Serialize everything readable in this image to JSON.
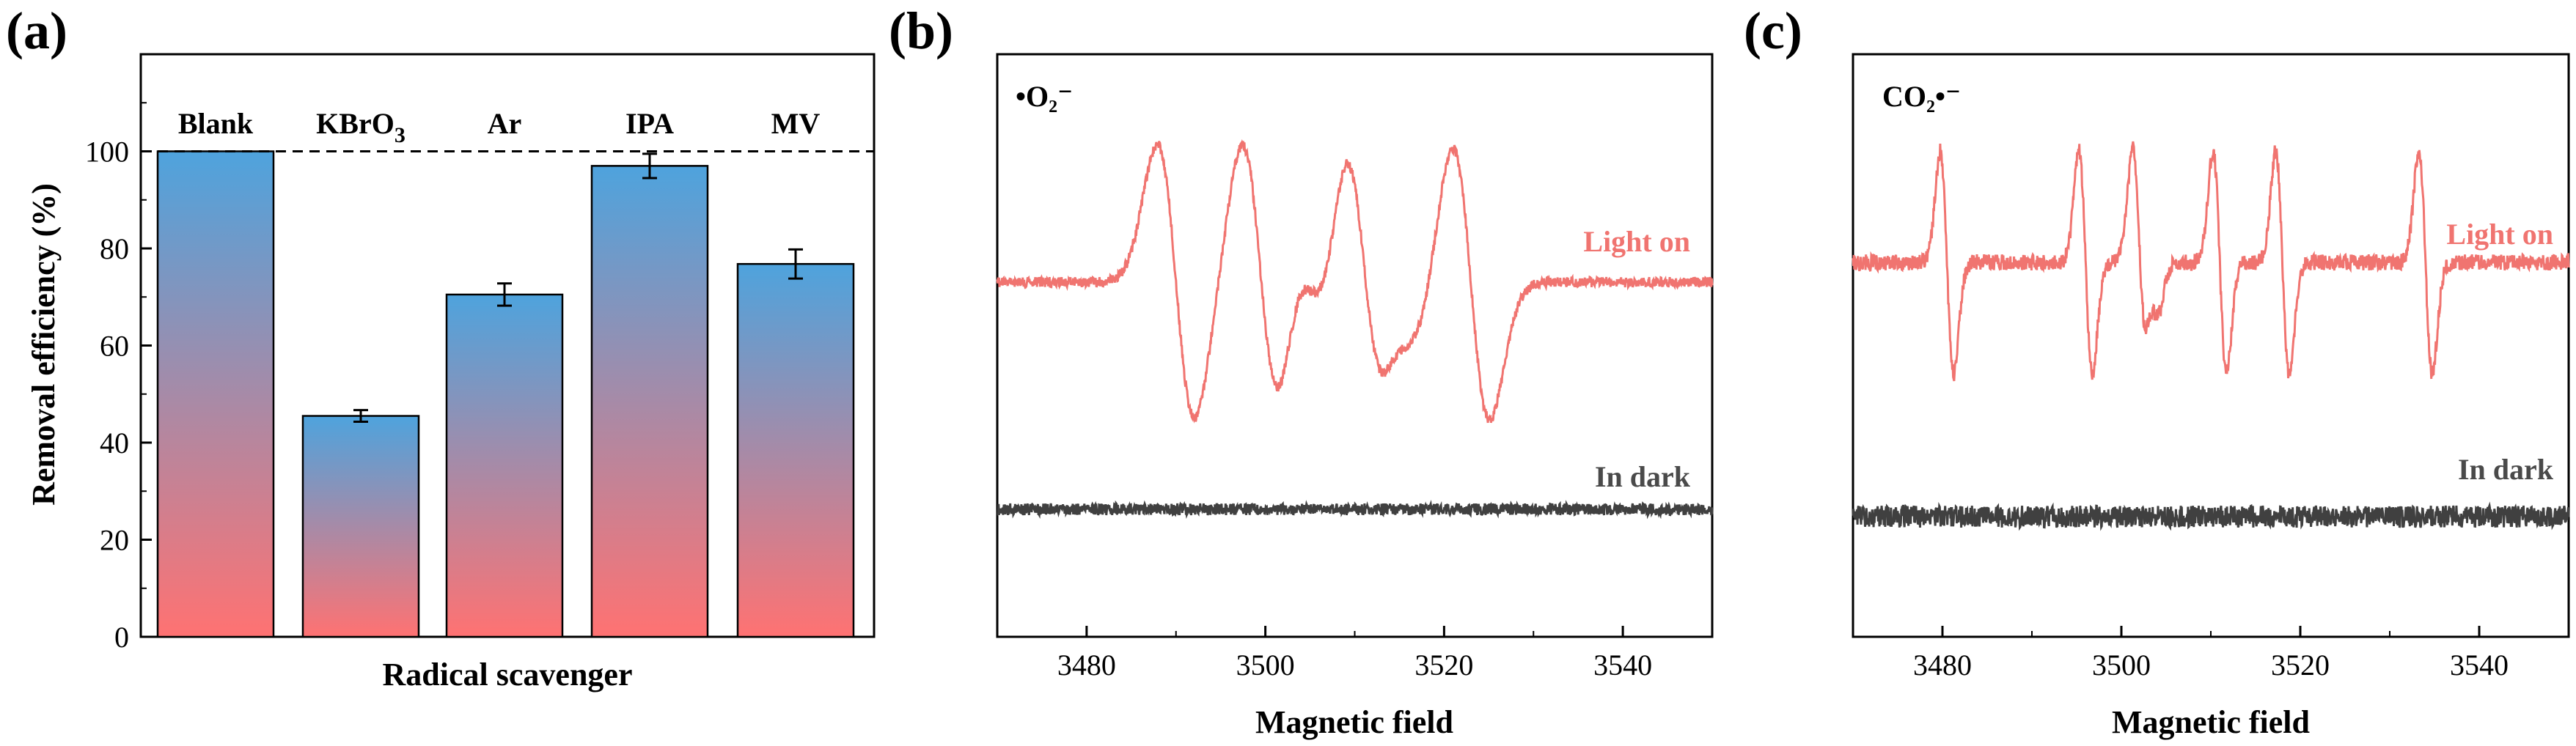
{
  "colors": {
    "bar_top": "#4ea3dd",
    "bar_bottom": "#ff7272",
    "light_on": "#f07470",
    "in_dark": "#404040"
  },
  "chart_data": [
    {
      "panel": "(a)",
      "type": "bar",
      "categories": [
        "Blank",
        "KBrO3",
        "Ar",
        "IPA",
        "MV"
      ],
      "values": [
        100,
        45.5,
        70.5,
        97,
        76.8
      ],
      "errors": [
        0,
        1.2,
        2.3,
        2.5,
        3.0
      ],
      "xlabel": "Radical scavenger",
      "ylabel": "Removal efficiency (%)",
      "ylim": [
        0,
        120
      ],
      "yticks": [
        "0",
        "20",
        "40",
        "60",
        "80",
        "100"
      ],
      "reference_line": 100,
      "grid": false
    },
    {
      "panel": "(b)",
      "type": "line",
      "species": "•O₂⁻",
      "xlabel": "Magnetic field",
      "xlim": [
        3470,
        3550
      ],
      "xticks": [
        "3480",
        "3500",
        "3520",
        "3540"
      ],
      "series": [
        {
          "name": "Light on",
          "line_positions": [
            3490,
            3499.5,
            3505,
            3511,
            3515,
            3523
          ],
          "line_amplitudes": [
            1,
            1,
            0.35,
            1,
            0.35,
            1
          ]
        },
        {
          "name": "In dark",
          "line_positions": [],
          "line_amplitudes": []
        }
      ],
      "grid": false
    },
    {
      "panel": "(c)",
      "type": "line",
      "species": "CO₂•⁻",
      "xlabel": "Magnetic field",
      "xlim": [
        3470,
        3550
      ],
      "xticks": [
        "3480",
        "3500",
        "3520",
        "3540"
      ],
      "series": [
        {
          "name": "Light on",
          "line_positions": [
            3480.5,
            3496,
            3502,
            3503.5,
            3511,
            3518,
            3534
          ],
          "line_amplitudes": [
            1,
            1,
            1,
            0.4,
            1,
            1,
            1
          ]
        },
        {
          "name": "In dark",
          "line_positions": [],
          "line_amplitudes": []
        }
      ],
      "grid": false
    }
  ]
}
